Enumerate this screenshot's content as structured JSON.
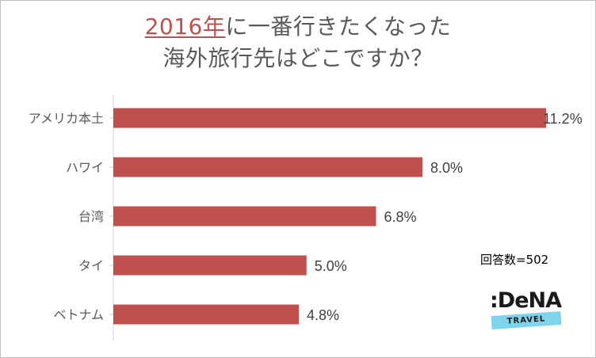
{
  "title": {
    "highlight": "2016年",
    "line1_rest": "に一番行きたくなった",
    "line2": "海外旅行先はどこですか？"
  },
  "respondents_label": "回答数=502",
  "logo": {
    "mark": ":DeNA",
    "band": "TRAVEL",
    "band_color": "#7fd3ec"
  },
  "colors": {
    "bar": "#c0504d",
    "title": "#595959",
    "highlight": "#c0504d"
  },
  "chart_data": {
    "type": "bar",
    "orientation": "horizontal",
    "title": "2016年に一番行きたくなった海外旅行先はどこですか？",
    "categories": [
      "アメリカ本土",
      "ハワイ",
      "台湾",
      "タイ",
      "ベトナム"
    ],
    "values": [
      11.2,
      8.0,
      6.8,
      5.0,
      4.8
    ],
    "value_labels": [
      "11.2%",
      "8.0%",
      "6.8%",
      "5.0%",
      "4.8%"
    ],
    "unit": "%",
    "xlim": [
      0,
      11.2
    ],
    "grid": false,
    "legend": false
  }
}
